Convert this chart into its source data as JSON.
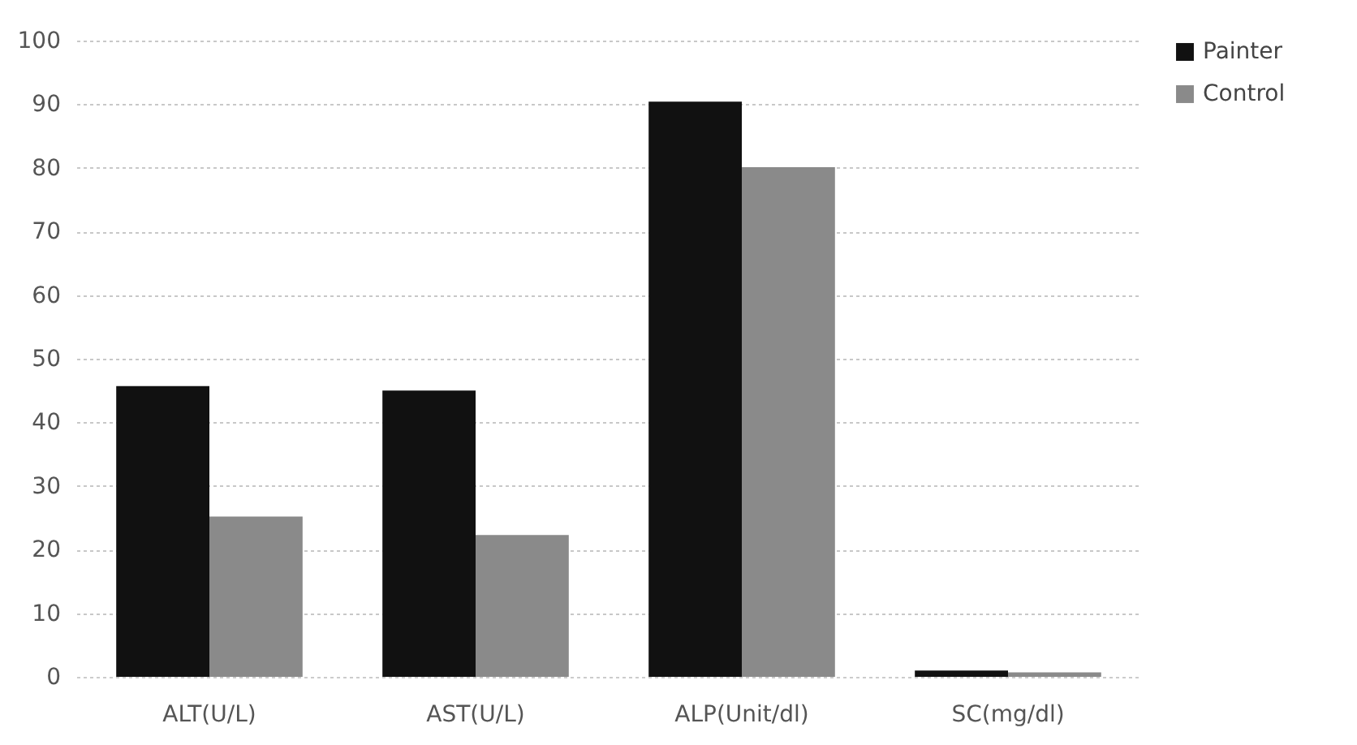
{
  "chart_data": {
    "type": "bar",
    "categories": [
      "ALT(U/L)",
      "AST(U/L)",
      "ALP(Unit/dl)",
      "SC(mg/dl)"
    ],
    "series": [
      {
        "name": "Painter",
        "color": "#111111",
        "values": [
          45.7,
          45,
          90.4,
          1
        ]
      },
      {
        "name": "Control",
        "color": "#8a8a8a",
        "values": [
          25.2,
          22.3,
          80.1,
          0.7
        ]
      }
    ],
    "ylim": [
      0,
      100
    ],
    "yticks": [
      0,
      10,
      20,
      30,
      40,
      50,
      60,
      70,
      80,
      90,
      100
    ],
    "grid": "y",
    "legend": "right"
  }
}
